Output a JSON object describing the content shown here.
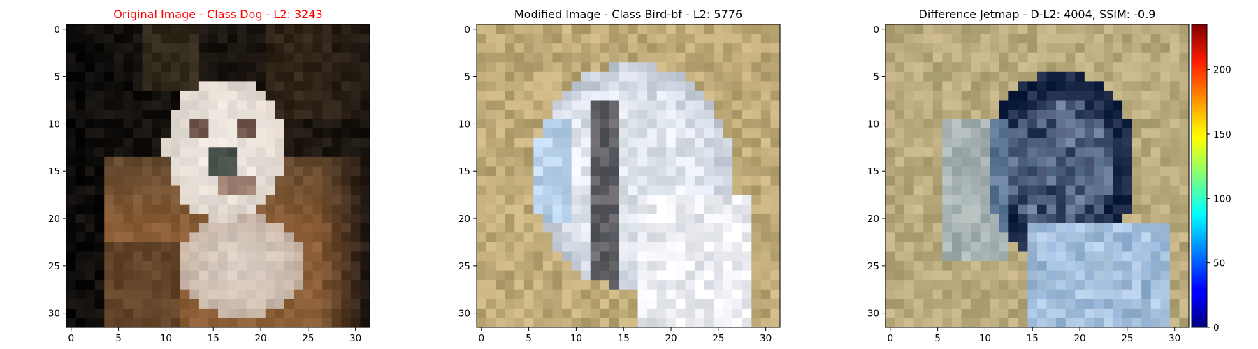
{
  "chart_data": [
    {
      "type": "heatmap",
      "title": "Original Image - Class Dog - L2: 3243",
      "title_color": "#ff0000",
      "image_size": [
        32,
        32
      ],
      "xlim": [
        -0.5,
        31.5
      ],
      "ylim": [
        31.5,
        -0.5
      ],
      "x_ticks": [
        0,
        5,
        10,
        15,
        20,
        25,
        30
      ],
      "y_ticks": [
        0,
        5,
        10,
        15,
        20,
        25,
        30
      ],
      "x_tick_labels": [
        "0",
        "5",
        "10",
        "15",
        "20",
        "25",
        "30"
      ],
      "y_tick_labels": [
        "0",
        "5",
        "10",
        "15",
        "20",
        "25",
        "30"
      ],
      "content": "dog-photo"
    },
    {
      "type": "heatmap",
      "title": "Modified Image - Class Bird-bf - L2: 5776",
      "title_color": "#000000",
      "image_size": [
        32,
        32
      ],
      "xlim": [
        -0.5,
        31.5
      ],
      "ylim": [
        31.5,
        -0.5
      ],
      "x_ticks": [
        0,
        5,
        10,
        15,
        20,
        25,
        30
      ],
      "y_ticks": [
        0,
        5,
        10,
        15,
        20,
        25,
        30
      ],
      "x_tick_labels": [
        "0",
        "5",
        "10",
        "15",
        "20",
        "25",
        "30"
      ],
      "y_tick_labels": [
        "0",
        "5",
        "10",
        "15",
        "20",
        "25",
        "30"
      ],
      "content": "bird-photo"
    },
    {
      "type": "heatmap",
      "title": "Difference Jetmap - D-L2: 4004, SSIM: -0.9",
      "title_color": "#000000",
      "image_size": [
        32,
        32
      ],
      "xlim": [
        -0.5,
        31.5
      ],
      "ylim": [
        31.5,
        -0.5
      ],
      "x_ticks": [
        0,
        5,
        10,
        15,
        20,
        25,
        30
      ],
      "y_ticks": [
        0,
        5,
        10,
        15,
        20,
        25,
        30
      ],
      "x_tick_labels": [
        "0",
        "5",
        "10",
        "15",
        "20",
        "25",
        "30"
      ],
      "y_tick_labels": [
        "0",
        "5",
        "10",
        "15",
        "20",
        "25",
        "30"
      ],
      "content": "difference-map",
      "colorbar": {
        "colormap": "jet",
        "range": [
          0,
          235
        ],
        "ticks": [
          0,
          50,
          100,
          150,
          200
        ],
        "tick_labels": [
          "0",
          "50",
          "100",
          "150",
          "200"
        ]
      }
    }
  ]
}
